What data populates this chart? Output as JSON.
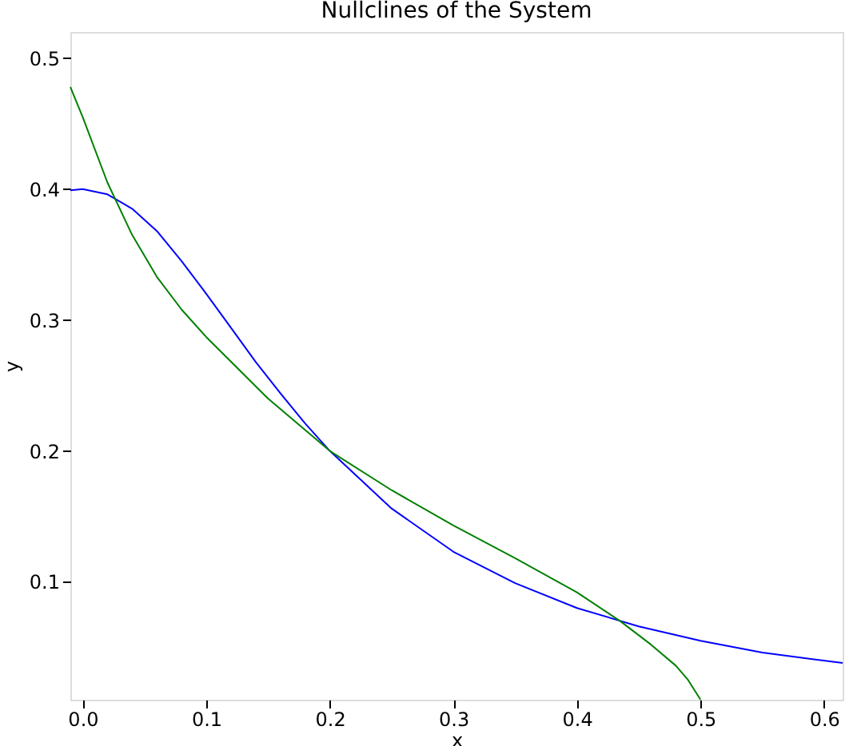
{
  "chart_data": {
    "type": "line",
    "title": "Nullclines of the System",
    "xlabel": "x",
    "ylabel": "y",
    "xlim": [
      -0.01,
      0.615
    ],
    "ylim": [
      0.01,
      0.52
    ],
    "xticks": [
      {
        "value": 0,
        "label": "0.0"
      },
      0.1,
      0.2,
      0.3,
      0.4,
      0.5,
      0.6
    ],
    "yticks": [
      0.1,
      0.2,
      0.3,
      0.4,
      0.5
    ],
    "grid": false,
    "legend": false,
    "marker": "none",
    "line_style": "solid",
    "series": [
      {
        "color": "#0000ff",
        "x": [
          -0.01,
          0,
          0.02,
          0.04,
          0.06,
          0.08,
          0.1,
          0.12,
          0.14,
          0.16,
          0.18,
          0.2,
          0.25,
          0.3,
          0.35,
          0.4,
          0.45,
          0.5,
          0.55,
          0.615
        ],
        "values": [
          0.399,
          0.4,
          0.396,
          0.385,
          0.368,
          0.345,
          0.32,
          0.294,
          0.268,
          0.244,
          0.221,
          0.2,
          0.156,
          0.123,
          0.099,
          0.08,
          0.066,
          0.055,
          0.046,
          0.038
        ]
      },
      {
        "color": "#008000",
        "x": [
          -0.01,
          0,
          0.02,
          0.04,
          0.06,
          0.08,
          0.1,
          0.15,
          0.2,
          0.25,
          0.3,
          0.35,
          0.4,
          0.435,
          0.46,
          0.48,
          0.49,
          0.5
        ],
        "values": [
          0.478,
          0.455,
          0.405,
          0.365,
          0.333,
          0.308,
          0.287,
          0.24,
          0.2,
          0.17,
          0.143,
          0.118,
          0.092,
          0.07,
          0.052,
          0.036,
          0.025,
          0.01
        ]
      }
    ]
  }
}
